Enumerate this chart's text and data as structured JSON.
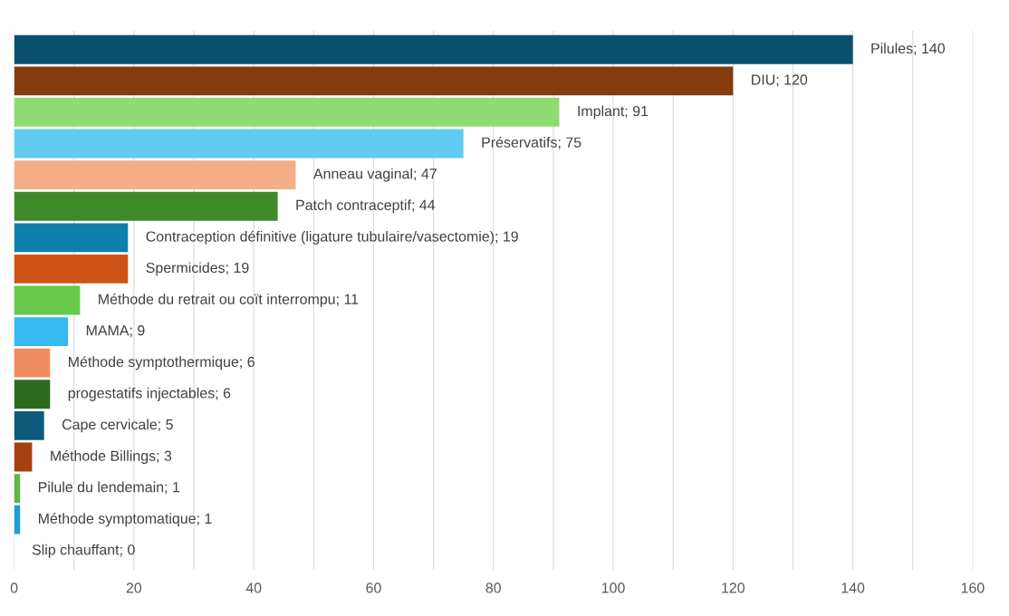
{
  "chart_data": {
    "type": "bar",
    "orientation": "horizontal",
    "categories": [
      null,
      null,
      null,
      null,
      null,
      null,
      null,
      null,
      null,
      null,
      null,
      null,
      null,
      null,
      null,
      null,
      null
    ],
    "values": [
      140,
      120,
      91,
      75,
      47,
      44,
      19,
      19,
      11,
      9,
      6,
      6,
      5,
      3,
      1,
      1,
      0
    ],
    "value_labels": [
      "Pilules; 140",
      "DIU; 120",
      "Implant; 91",
      "Préservatifs; 75",
      "Anneau vaginal; 47",
      "Patch contraceptif; 44",
      "Contraception définitive (ligature tubulaire/vasectomie); 19",
      "Spermicides; 19",
      "Méthode du retrait ou coït interrompu; 11",
      "MAMA; 9",
      "Méthode symptothermique; 6",
      "progestatifs injectables; 6",
      "Cape cervicale; 5",
      "Méthode Billings; 3",
      "Pilule du lendemain; 1",
      "Méthode symptomatique; 1",
      "Slip chauffant; 0"
    ],
    "colors": [
      "#0a4f6b",
      "#843c0c",
      "#8fdb72",
      "#62cbf2",
      "#f4ad87",
      "#3e8a2a",
      "#0e7fab",
      "#cf5415",
      "#66c94a",
      "#35b9ef",
      "#ef8d5e",
      "#2e6a1e",
      "#0c5b7a",
      "#a3420f",
      "#5ab843",
      "#1f9dd8",
      "#f4ad87"
    ],
    "xlim": [
      0,
      160
    ],
    "xticks": [
      0,
      {
        "value": 10,
        "label": null
      },
      20,
      {
        "value": 30,
        "label": null
      },
      40,
      {
        "value": 50,
        "label": null
      },
      60,
      {
        "value": 70,
        "label": null
      },
      80,
      {
        "value": 90,
        "label": null
      },
      100,
      {
        "value": 110,
        "label": null
      },
      120,
      {
        "value": 130,
        "label": null
      },
      140,
      {
        "value": 150,
        "label": null
      },
      160
    ],
    "tick_labels": "x",
    "grid": "x",
    "legend": false
  }
}
